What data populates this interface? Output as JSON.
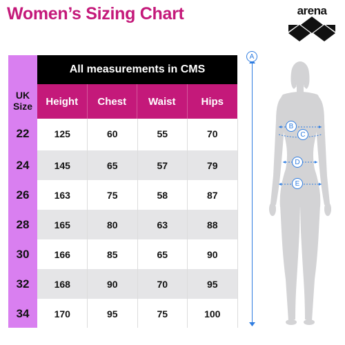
{
  "title": "Women’s Sizing Chart",
  "brand": "arena",
  "table": {
    "units_header": "All measurements in CMS",
    "size_header": "UK Size",
    "columns": [
      "Height",
      "Chest",
      "Waist",
      "Hips"
    ],
    "rows": [
      {
        "size": "22",
        "values": [
          "125",
          "60",
          "55",
          "70"
        ]
      },
      {
        "size": "24",
        "values": [
          "145",
          "65",
          "57",
          "79"
        ]
      },
      {
        "size": "26",
        "values": [
          "163",
          "75",
          "58",
          "87"
        ]
      },
      {
        "size": "28",
        "values": [
          "165",
          "80",
          "63",
          "88"
        ]
      },
      {
        "size": "30",
        "values": [
          "166",
          "85",
          "65",
          "90"
        ]
      },
      {
        "size": "32",
        "values": [
          "168",
          "90",
          "70",
          "95"
        ]
      },
      {
        "size": "34",
        "values": [
          "170",
          "95",
          "75",
          "100"
        ]
      }
    ]
  },
  "figure_markers": [
    "A",
    "B",
    "C",
    "D",
    "E"
  ],
  "colors": {
    "title": "#c4197a",
    "header_magenta": "#c4197a",
    "size_column": "#d97ff0",
    "measure_line": "#2f7de1",
    "silhouette": "#d3d3d5"
  }
}
